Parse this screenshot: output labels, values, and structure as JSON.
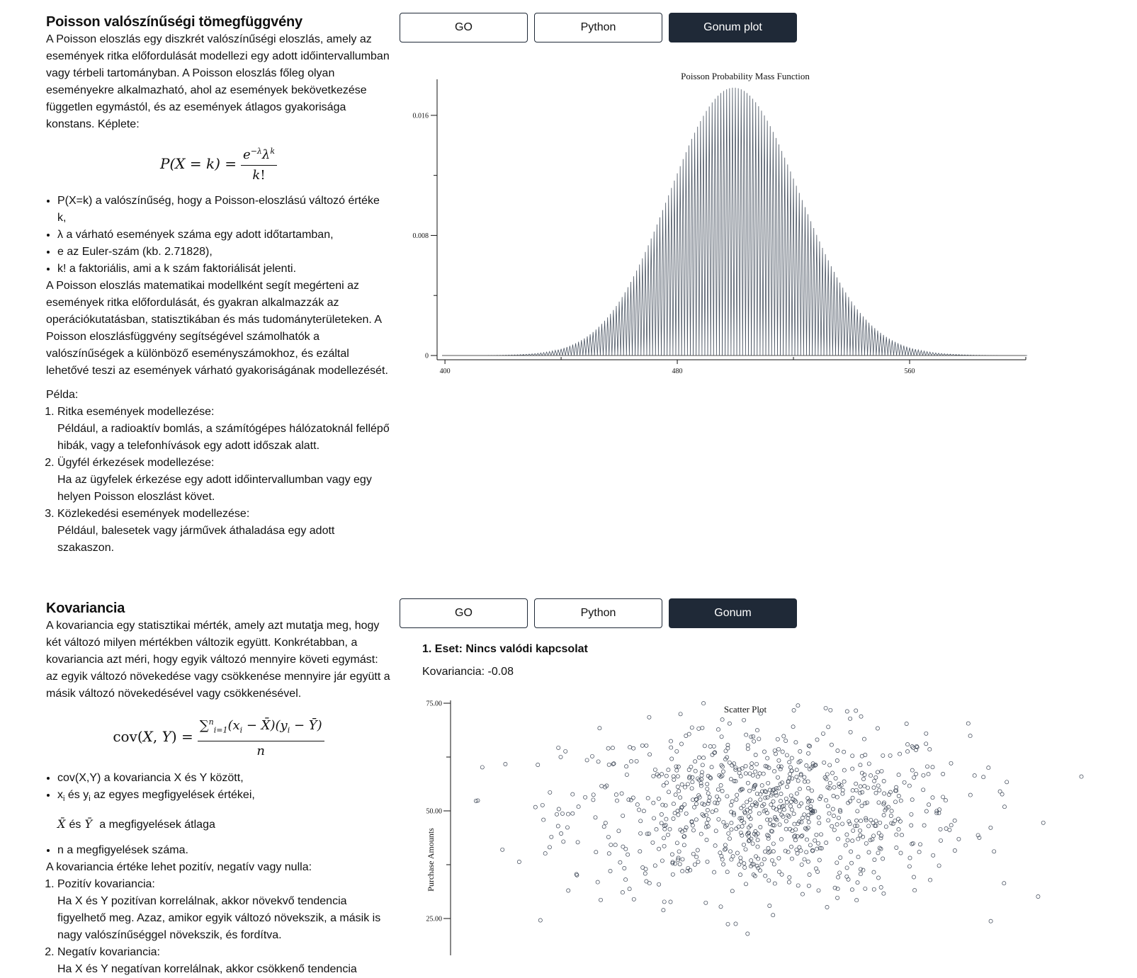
{
  "poisson": {
    "title": "Poisson valószínűségi tömegfüggvény",
    "intro": "A Poisson eloszlás egy diszkrét valószínűségi eloszlás, amely az események ritka előfordulását modellezi egy adott időintervallumban vagy térbeli tartományban. A Poisson eloszlás főleg olyan eseményekre alkalmazható, ahol az események bekövetkezése független egymástól, és az események átlagos gyakorisága konstans. Képlete:",
    "bullets": [
      "P(X=k) a valószínűség, hogy a Poisson-eloszlású változó értéke k,",
      "λ a várható események száma egy adott időtartamban,",
      "e az Euler-szám (kb. 2.71828),",
      "k! a faktoriális, ami a k szám faktoriálisát jelenti."
    ],
    "summary": "A Poisson eloszlás matematikai modellként segít megérteni az események ritka előfordulását, és gyakran alkalmazzák az operációkutatásban, statisztikában és más tudományterületeken. A Poisson eloszlásfüggvény segítségével számolhatók a valószínűségek a különböző eseményszámokhoz, és ezáltal lehetővé teszi az események várható gyakoriságának modellezését.",
    "example_label": "Példa:",
    "examples": [
      {
        "title": "Ritka események modellezése:",
        "text": "Például, a radioaktív bomlás, a számítógépes hálózatoknál fellépő hibák, vagy a telefonhívások egy adott időszak alatt."
      },
      {
        "title": "Ügyfél érkezések modellezése:",
        "text": "Ha az ügyfelek érkezése egy adott időintervallumban vagy egy helyen Poisson eloszlást követ."
      },
      {
        "title": "Közlekedési események modellezése:",
        "text": "Például, balesetek vagy járművek áthaladása egy adott szakaszon."
      }
    ],
    "buttons": [
      "GO",
      "Python",
      "Gonum plot"
    ],
    "active_button": 2
  },
  "kovariancia": {
    "title": "Kovariancia",
    "intro": "A kovariancia egy statisztikai mérték, amely azt mutatja meg, hogy két változó milyen mértékben változik együtt. Konkrétabban, a kovariancia azt méri, hogy egyik változó mennyire követi egymást: az egyik változó növekedése vagy csökkenése mennyire jár együtt a másik változó növekedésével vagy csökkenésével.",
    "bullet1": "cov(X,Y) a kovariancia X és Y között,",
    "bullet2_pre": "x",
    "bullet2_sub1": "i",
    "bullet2_mid": " és y",
    "bullet2_sub2": "i",
    "bullet2_post": " az egyes megfigyelések értékei,",
    "mean_text": "a megfigyelések átlaga",
    "mean_joiner": "és",
    "bullet3": "n a megfigyelések száma.",
    "sign_text": "A kovariancia értéke lehet pozitív, negatív vagy nulla:",
    "types": [
      {
        "title": "Pozitív kovariancia:",
        "text": "Ha X és Y pozitívan korrelálnak, akkor növekvő tendencia figyelhető meg. Azaz, amikor egyik változó növekszik, a másik is nagy valószínűséggel növekszik, és fordítva."
      },
      {
        "title": "Negatív kovariancia:",
        "text": "Ha X és Y negatívan korrelálnak, akkor csökkenő tendencia"
      }
    ],
    "buttons": [
      "GO",
      "Python",
      "Gonum"
    ],
    "active_button": 2,
    "case_title": "1. Eset: Nincs valódi kapcsolat",
    "cov_value": "Kovariancia: -0.08"
  },
  "chart_data": [
    {
      "type": "bar",
      "title": "Poisson Probability Mass Function",
      "xlabel": "",
      "ylabel": "",
      "distribution": "poisson",
      "lambda": 500,
      "x_range": [
        400,
        600
      ],
      "xlim": [
        399,
        600
      ],
      "ylim": [
        0,
        0.0184
      ],
      "x_ticks": [
        "400",
        "480",
        "560"
      ],
      "y_ticks": [
        "0",
        "0.008",
        "0.016"
      ],
      "bar_color": "#4b5563"
    },
    {
      "type": "scatter",
      "title": "Scatter Plot",
      "xlabel": "",
      "ylabel": "Purchase Amounts",
      "points_approx": 900,
      "x_range_approx": [
        0,
        100
      ],
      "y_mean_approx": 50,
      "y_std_approx": 10,
      "covariance": -0.08,
      "y_ticks": [
        "75.00",
        "50.00",
        "25.00"
      ],
      "ylim_visible": [
        20,
        80
      ],
      "marker": "open-circle",
      "marker_color": "#374151"
    }
  ]
}
